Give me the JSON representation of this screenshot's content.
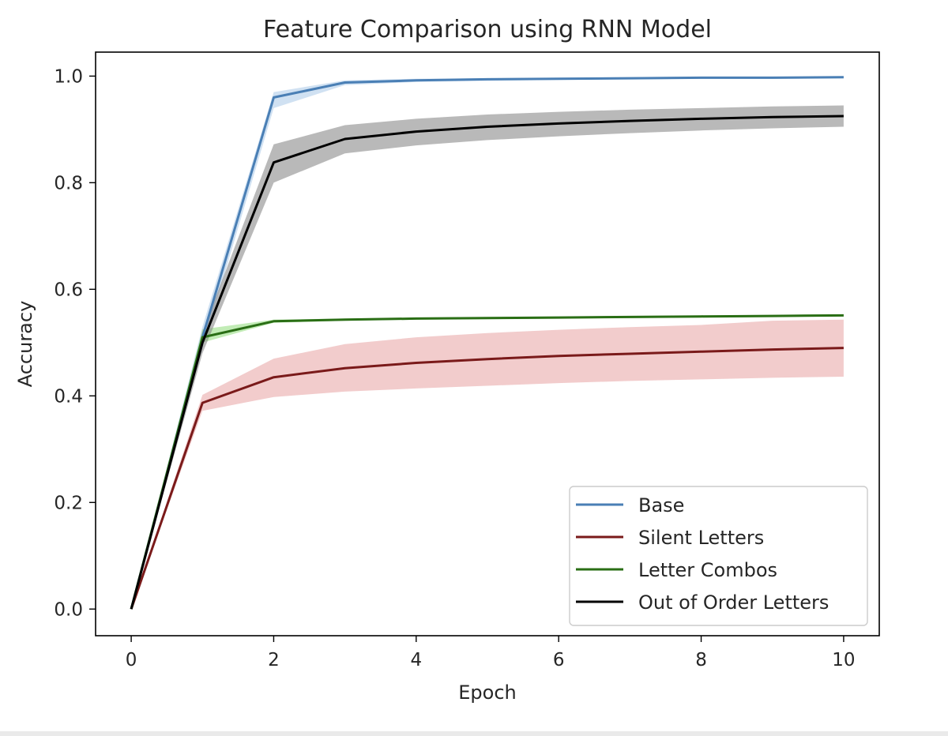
{
  "chart_data": {
    "type": "line",
    "title": "Feature Comparison using RNN Model",
    "xlabel": "Epoch",
    "ylabel": "Accuracy",
    "xlim": [
      -0.5,
      10.5
    ],
    "ylim": [
      -0.05,
      1.045
    ],
    "xticks": [
      0,
      2,
      4,
      6,
      8,
      10
    ],
    "yticks": [
      0.0,
      0.2,
      0.4,
      0.6,
      0.8,
      1.0
    ],
    "xtick_labels": [
      "0",
      "2",
      "4",
      "6",
      "8",
      "10"
    ],
    "ytick_labels": [
      "0.0",
      "0.2",
      "0.4",
      "0.6",
      "0.8",
      "1.0"
    ],
    "grid": false,
    "legend_position": "lower-right",
    "x": [
      0,
      1,
      2,
      3,
      4,
      5,
      6,
      7,
      8,
      9,
      10
    ],
    "series": [
      {
        "name": "Base",
        "color": "#4a7fb5",
        "band_color": "#a9c9e8",
        "values": [
          0.0,
          0.51,
          0.96,
          0.988,
          0.992,
          0.994,
          0.995,
          0.996,
          0.997,
          0.997,
          0.998
        ],
        "lower": [
          0.0,
          0.49,
          0.94,
          0.983,
          0.989,
          0.991,
          0.993,
          0.994,
          0.995,
          0.995,
          0.996
        ],
        "upper": [
          0.0,
          0.53,
          0.97,
          0.992,
          0.995,
          0.996,
          0.997,
          0.998,
          0.999,
          0.999,
          0.999
        ]
      },
      {
        "name": "Silent Letters",
        "color": "#7a1a1a",
        "band_color": "#e8a3a3",
        "values": [
          0.0,
          0.387,
          0.435,
          0.452,
          0.462,
          0.469,
          0.475,
          0.479,
          0.483,
          0.487,
          0.49
        ],
        "lower": [
          0.0,
          0.372,
          0.398,
          0.408,
          0.414,
          0.419,
          0.424,
          0.428,
          0.431,
          0.434,
          0.436
        ],
        "upper": [
          0.0,
          0.402,
          0.47,
          0.497,
          0.51,
          0.518,
          0.524,
          0.529,
          0.533,
          0.541,
          0.543
        ]
      },
      {
        "name": "Letter Combos",
        "color": "#2a6e15",
        "band_color": "#8fdc7a",
        "values": [
          0.0,
          0.51,
          0.54,
          0.543,
          0.545,
          0.546,
          0.547,
          0.548,
          0.549,
          0.55,
          0.551
        ],
        "lower": [
          0.0,
          0.5,
          0.537,
          0.541,
          0.543,
          0.544,
          0.545,
          0.546,
          0.547,
          0.548,
          0.549
        ],
        "upper": [
          0.0,
          0.525,
          0.543,
          0.545,
          0.547,
          0.548,
          0.549,
          0.55,
          0.551,
          0.552,
          0.553
        ]
      },
      {
        "name": "Out of Order Letters",
        "color": "#000000",
        "band_color": "#7f7f7f",
        "values": [
          0.0,
          0.5,
          0.838,
          0.882,
          0.896,
          0.905,
          0.911,
          0.916,
          0.92,
          0.923,
          0.925
        ],
        "lower": [
          0.0,
          0.48,
          0.8,
          0.855,
          0.87,
          0.88,
          0.887,
          0.893,
          0.898,
          0.902,
          0.905
        ],
        "upper": [
          0.0,
          0.52,
          0.872,
          0.908,
          0.92,
          0.928,
          0.933,
          0.937,
          0.94,
          0.943,
          0.945
        ]
      }
    ]
  }
}
